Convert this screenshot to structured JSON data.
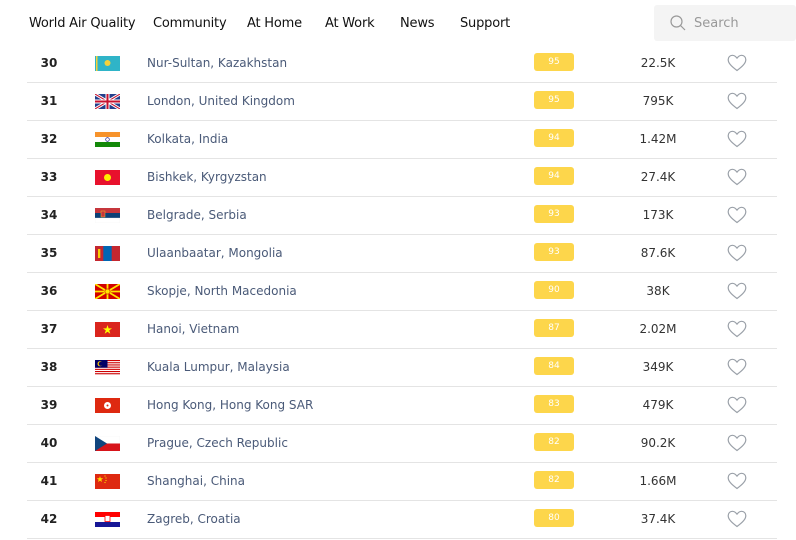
{
  "nav": {
    "items": [
      "World Air Quality",
      "Community",
      "At Home",
      "At Work",
      "News",
      "Support"
    ]
  },
  "search": {
    "placeholder": "Search",
    "icon": "search-icon"
  },
  "colors": {
    "aqi_badge": "#fdd64b",
    "city_link": "#4a5a78"
  },
  "rows": [
    {
      "rank": "30",
      "flag": "kz",
      "city": "Nur-Sultan, Kazakhstan",
      "aqi": "95",
      "followers": "22.5K"
    },
    {
      "rank": "31",
      "flag": "gb",
      "city": "London, United Kingdom",
      "aqi": "95",
      "followers": "795K"
    },
    {
      "rank": "32",
      "flag": "in",
      "city": "Kolkata, India",
      "aqi": "94",
      "followers": "1.42M"
    },
    {
      "rank": "33",
      "flag": "kg",
      "city": "Bishkek, Kyrgyzstan",
      "aqi": "94",
      "followers": "27.4K"
    },
    {
      "rank": "34",
      "flag": "rs",
      "city": "Belgrade, Serbia",
      "aqi": "93",
      "followers": "173K"
    },
    {
      "rank": "35",
      "flag": "mn",
      "city": "Ulaanbaatar, Mongolia",
      "aqi": "93",
      "followers": "87.6K"
    },
    {
      "rank": "36",
      "flag": "mk",
      "city": "Skopje, North Macedonia",
      "aqi": "90",
      "followers": "38K"
    },
    {
      "rank": "37",
      "flag": "vn",
      "city": "Hanoi, Vietnam",
      "aqi": "87",
      "followers": "2.02M"
    },
    {
      "rank": "38",
      "flag": "my",
      "city": "Kuala Lumpur, Malaysia",
      "aqi": "84",
      "followers": "349K"
    },
    {
      "rank": "39",
      "flag": "hk",
      "city": "Hong Kong, Hong Kong SAR",
      "aqi": "83",
      "followers": "479K"
    },
    {
      "rank": "40",
      "flag": "cz",
      "city": "Prague, Czech Republic",
      "aqi": "82",
      "followers": "90.2K"
    },
    {
      "rank": "41",
      "flag": "cn",
      "city": "Shanghai, China",
      "aqi": "82",
      "followers": "1.66M"
    },
    {
      "rank": "42",
      "flag": "hr",
      "city": "Zagreb, Croatia",
      "aqi": "80",
      "followers": "37.4K"
    }
  ]
}
